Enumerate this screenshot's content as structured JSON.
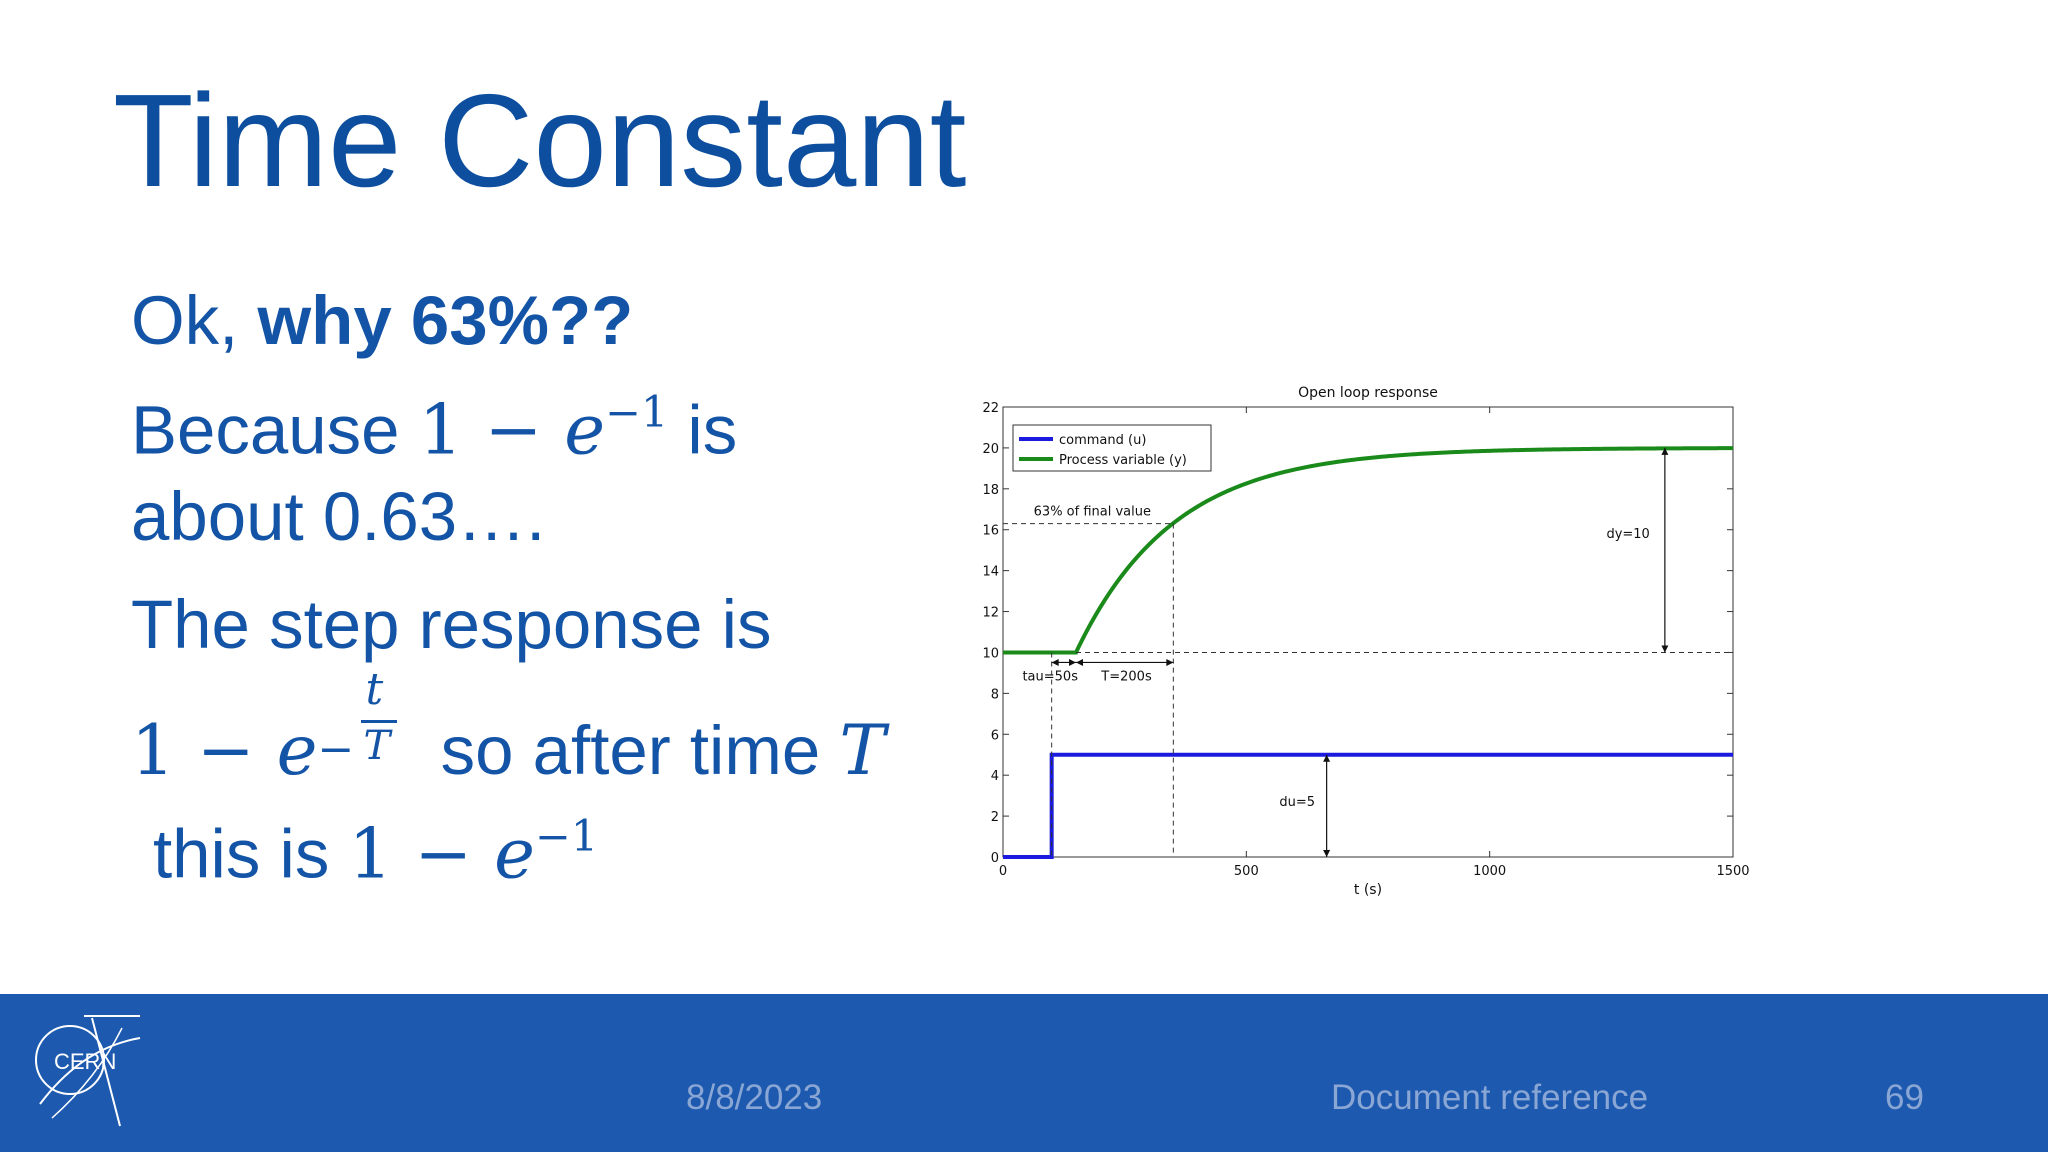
{
  "slide": {
    "title": "Time Constant",
    "line1_normal": "Ok, ",
    "line1_bold": "why 63%??",
    "line2_pre": "Because ",
    "line2_one": "1 − ",
    "line2_e": "e",
    "line2_exp": "−1",
    "line2_post": " is",
    "line3": "about 0.63….",
    "line4": "The step response is",
    "line5_one": "1 − ",
    "line5_e": "e",
    "line5_minus": "−",
    "line5_num": "t",
    "line5_den": "T",
    "line5_mid": " so after time ",
    "line5_T": "T",
    "line6_pre": "this is ",
    "line6_one": "1 − ",
    "line6_e": "e",
    "line6_exp": "−1"
  },
  "chart_data": {
    "type": "line",
    "title": "Open loop response",
    "xlabel": "t (s)",
    "ylabel": "",
    "xlim": [
      0,
      1500
    ],
    "ylim": [
      0,
      22
    ],
    "x_ticks": [
      0,
      500,
      1000,
      1500
    ],
    "y_ticks": [
      0,
      2,
      4,
      6,
      8,
      10,
      12,
      14,
      16,
      18,
      20,
      22
    ],
    "legend": [
      "command (u)",
      "Process variable (y)"
    ],
    "legend_position": "top-left",
    "series": [
      {
        "name": "command (u)",
        "color": "#1b1be0",
        "x": [
          0,
          100,
          100,
          1500
        ],
        "y": [
          0,
          0,
          5,
          5
        ]
      },
      {
        "name": "Process variable (y)",
        "color": "#1a8a1a",
        "step_time": 100,
        "dead_time": 50,
        "time_constant": 200,
        "y_start": 10,
        "y_final": 20
      }
    ],
    "annotations": {
      "pct_label": "63% of final value",
      "tau_label": "tau=50s",
      "T_label": "T=200s",
      "dy_label": "dy=10",
      "du_label": "du=5"
    }
  },
  "footer": {
    "date": "8/8/2023",
    "reference": "Document reference",
    "page": "69",
    "logo_text": "CERN"
  },
  "colors": {
    "title": "#0d4f9e",
    "body_text": "#1454a6",
    "footer_bg": "#1d5aaf",
    "footer_text": "#8aa6d4"
  }
}
